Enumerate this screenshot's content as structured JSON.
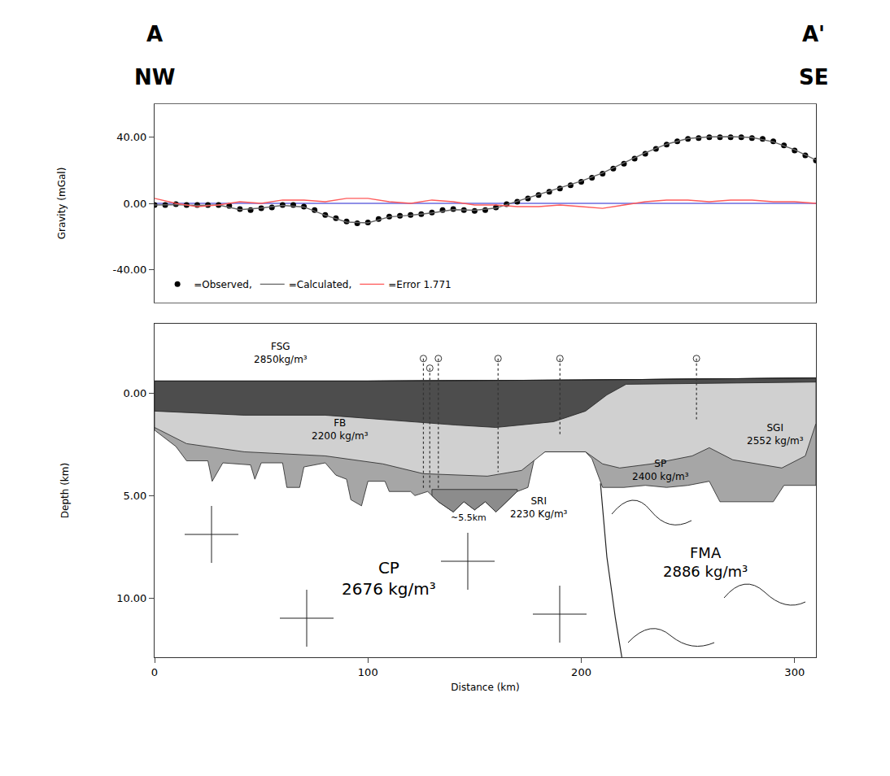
{
  "header": {
    "left": [
      "A",
      "NW"
    ],
    "right": [
      "A'",
      "SE"
    ]
  },
  "chart_data": [
    {
      "type": "scatter",
      "ylabel": "Gravity (mGal)",
      "xlim": [
        0,
        310
      ],
      "ylim": [
        -60,
        60
      ],
      "yticks": [
        {
          "value": 40,
          "label": "40.00"
        },
        {
          "value": 0,
          "label": "0.00"
        },
        {
          "value": -40,
          "label": "-40.00"
        }
      ],
      "tick_labels": "y",
      "legend": "bottom left",
      "grid": false,
      "reference_line": {
        "y": 0,
        "color": "#2020d0"
      },
      "series": [
        {
          "name": "=Observed,",
          "type": "scatter",
          "marker": "circle",
          "color": "#000000",
          "x": [
            0,
            5,
            10,
            15,
            20,
            25,
            30,
            35,
            40,
            45,
            50,
            55,
            60,
            65,
            70,
            75,
            80,
            85,
            90,
            95,
            100,
            105,
            110,
            115,
            120,
            125,
            130,
            135,
            140,
            145,
            150,
            155,
            160,
            165,
            170,
            175,
            180,
            185,
            190,
            195,
            200,
            205,
            210,
            215,
            220,
            225,
            230,
            235,
            240,
            245,
            250,
            255,
            260,
            265,
            270,
            275,
            280,
            285,
            290,
            295,
            300,
            305,
            310
          ],
          "values": [
            -1,
            -1,
            -0.5,
            -1,
            -1,
            -1,
            -1,
            -1.5,
            -3.5,
            -4,
            -3,
            -2.5,
            -1,
            -1,
            -2,
            -4,
            -7,
            -9,
            -11,
            -12,
            -11.5,
            -9.5,
            -8,
            -7.5,
            -7,
            -6.5,
            -5.5,
            -4,
            -3.5,
            -4,
            -4.5,
            -4,
            -2.5,
            -0.5,
            1,
            3,
            5,
            7,
            9,
            11,
            13,
            15.5,
            18,
            21,
            24,
            27,
            30,
            33,
            35.5,
            37.5,
            39,
            39.5,
            40,
            40,
            40,
            40,
            39.5,
            39,
            37.5,
            35,
            32,
            29,
            26
          ]
        },
        {
          "name": "=Calculated,",
          "type": "line",
          "line_style": "solid",
          "color": "#666666",
          "x": [
            0,
            10,
            20,
            30,
            40,
            50,
            60,
            70,
            80,
            90,
            100,
            110,
            120,
            130,
            140,
            150,
            160,
            170,
            180,
            190,
            200,
            210,
            220,
            230,
            240,
            250,
            260,
            270,
            280,
            290,
            300,
            310
          ],
          "values": [
            -1,
            -0.8,
            -1.2,
            -1,
            -3.8,
            -2.8,
            -1.2,
            -2.2,
            -7.2,
            -11.3,
            -11.8,
            -8.2,
            -7.2,
            -5.8,
            -3.8,
            -4.2,
            -2.8,
            1.2,
            5.2,
            9.3,
            13.5,
            18.4,
            24.3,
            30.6,
            35.8,
            39.2,
            40.2,
            40.3,
            39.8,
            37.2,
            32.4,
            26.2
          ]
        },
        {
          "name": "=Error 1.771",
          "type": "line",
          "line_style": "solid",
          "color": "#ff5a5a",
          "x": [
            0,
            10,
            20,
            30,
            40,
            50,
            60,
            70,
            80,
            90,
            100,
            110,
            120,
            130,
            140,
            150,
            160,
            170,
            180,
            190,
            200,
            210,
            220,
            230,
            240,
            250,
            260,
            270,
            280,
            290,
            300,
            310
          ],
          "values": [
            3,
            0,
            -2,
            -1,
            1,
            0,
            2,
            2,
            1,
            3,
            3,
            1,
            0,
            2,
            1,
            -1,
            -1,
            -2,
            -2,
            -1,
            -2,
            -3,
            -1,
            1,
            2,
            2,
            1,
            2,
            2,
            1,
            1,
            0
          ]
        }
      ]
    },
    {
      "type": "cross_section",
      "xlabel": "Distance (km)",
      "ylabel": "Depth (km)",
      "xlim": [
        0,
        310
      ],
      "xticks": [
        0,
        100,
        200,
        300
      ],
      "ylim": [
        12.9,
        -3.4
      ],
      "yticks": [
        {
          "value": 0,
          "label": "0.00"
        },
        {
          "value": 5,
          "label": "5.00"
        },
        {
          "value": 10,
          "label": "10.00"
        }
      ],
      "grid": false,
      "surface": {
        "x": [
          0,
          100,
          200,
          250,
          310
        ],
        "depth": [
          -0.6,
          -0.6,
          -0.65,
          -0.7,
          -0.75
        ]
      },
      "layers": [
        {
          "color": "#a6a6a6",
          "base": {
            "x": [
              0,
              10,
              15,
              25,
              27,
              32,
              45,
              47,
              50,
              60,
              62,
              68,
              70,
              80,
              85,
              90,
              92,
              97,
              100,
              108,
              110,
              120,
              122,
              128,
              133,
              140,
              145,
              150,
              155,
              160,
              165,
              170,
              175,
              178,
              183,
              202,
              205,
              210,
              220,
              230,
              240,
              250,
              260,
              265,
              290,
              295,
              310
            ],
            "depth": [
              1.8,
              2.6,
              3.3,
              3.3,
              4.3,
              3.4,
              3.5,
              4.2,
              3.4,
              3.4,
              4.6,
              4.6,
              3.6,
              3.4,
              4.0,
              4.2,
              5.2,
              5.5,
              4.3,
              4.3,
              4.8,
              4.8,
              5.0,
              4.8,
              5.3,
              5.8,
              5.3,
              5.7,
              5.3,
              5.8,
              5.3,
              4.8,
              4.6,
              3.2,
              2.86,
              2.86,
              3.2,
              4.6,
              4.6,
              4.5,
              4.6,
              4.5,
              4.3,
              5.3,
              5.3,
              4.5,
              4.5
            ]
          }
        },
        {
          "color": "#d0d0d0",
          "base": {
            "x": [
              0,
              15,
              42,
              80,
              107,
              126,
              156,
              172,
              183,
              202,
              210,
              218,
              233,
              252,
              260,
              271,
              294,
              305,
              310
            ],
            "depth": [
              1.67,
              2.46,
              2.86,
              3.06,
              3.45,
              3.93,
              4.05,
              3.77,
              2.86,
              2.86,
              3.45,
              3.65,
              3.45,
              3.06,
              2.66,
              3.25,
              3.65,
              3.06,
              1.47
            ]
          }
        },
        {
          "color": "#4d4d4d",
          "base": {
            "x": [
              0,
              42,
              80,
              107,
              141,
              160,
              187,
              202,
              212,
              221,
              310
            ],
            "depth": [
              0.87,
              1.07,
              1.07,
              1.27,
              1.55,
              1.67,
              1.39,
              0.87,
              0.08,
              -0.44,
              -0.55
            ]
          }
        }
      ],
      "bodies": [
        {
          "color": "#8c8c8c",
          "x": [
            130,
            170,
            170,
            165,
            160,
            155,
            150,
            145,
            140,
            133,
            130
          ],
          "depth": [
            4.7,
            4.7,
            4.8,
            5.3,
            5.8,
            5.3,
            5.7,
            5.3,
            5.8,
            5.3,
            5.0
          ]
        }
      ],
      "contact": {
        "x": [
          209,
          212,
          216,
          219
        ],
        "depth": [
          4.4,
          8,
          11,
          12.9
        ],
        "line_style": "solid",
        "color": "#222222"
      },
      "wells": {
        "x": [
          126,
          129,
          133,
          161,
          190,
          254
        ],
        "top": [
          -1.7,
          -1.23,
          -1.7,
          -1.7,
          -1.7,
          -1.7
        ],
        "bottom": [
          4.64,
          4.64,
          4.64,
          3.85,
          2.06,
          1.27
        ],
        "line_style": "dotted",
        "marker": "circle-open",
        "color": "#333333"
      },
      "unit_labels": [
        {
          "text": [
            "FSG",
            "2850kg/m³"
          ],
          "x": 59,
          "depth": -1.95
        },
        {
          "text": [
            "FB",
            "2200 kg/m³"
          ],
          "x": 87,
          "depth": 1.78
        },
        {
          "text": [
            "SGI",
            "2552 kg/m³"
          ],
          "x": 291,
          "depth": 2.0
        },
        {
          "text": [
            "SP",
            "2400 kg/m³"
          ],
          "x": 237,
          "depth": 3.75
        },
        {
          "text": [
            "SRI",
            "2230 Kg/m³"
          ],
          "x": 180,
          "depth": 5.6
        }
      ],
      "basement_labels": [
        {
          "text": [
            "CP",
            "2676 kg/m³"
          ],
          "x": 110,
          "depth": 9.05
        },
        {
          "text": [
            "FMA",
            "2886 kg/m³"
          ],
          "x": 258,
          "depth": 8.25
        }
      ],
      "annotations": [
        {
          "text": "~5.5km",
          "x": 147,
          "depth": 6.1
        }
      ]
    }
  ]
}
